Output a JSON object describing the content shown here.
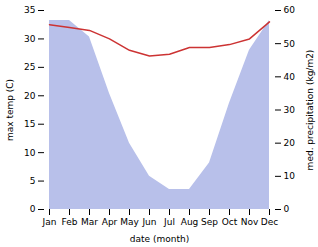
{
  "chart_data": {
    "type": "line",
    "categories": [
      "Jan",
      "Feb",
      "Mar",
      "Apr",
      "May",
      "Jun",
      "Jul",
      "Aug",
      "Sep",
      "Oct",
      "Nov",
      "Dec"
    ],
    "xlabel": "date (month)",
    "ylabel": "max temp (C)",
    "y2label": "med. precipitation (kg/m2)",
    "ylim": [
      0,
      35
    ],
    "yticks": [
      0,
      5,
      10,
      15,
      20,
      25,
      30,
      35
    ],
    "y2lim": [
      0,
      60
    ],
    "y2ticks": [
      0,
      10,
      20,
      30,
      40,
      50,
      60
    ],
    "grid": false,
    "series": [
      {
        "type": "area",
        "axis": "y2",
        "color": "#b8c0ea",
        "values": [
          57,
          57,
          52,
          35,
          20,
          10,
          6,
          6,
          14,
          32,
          48,
          57
        ]
      },
      {
        "type": "line",
        "color": "#cc3333",
        "values": [
          32.5,
          32.0,
          31.5,
          30.0,
          28.0,
          27.0,
          27.3,
          28.5,
          28.5,
          29.0,
          30.0,
          33.0
        ]
      }
    ]
  }
}
